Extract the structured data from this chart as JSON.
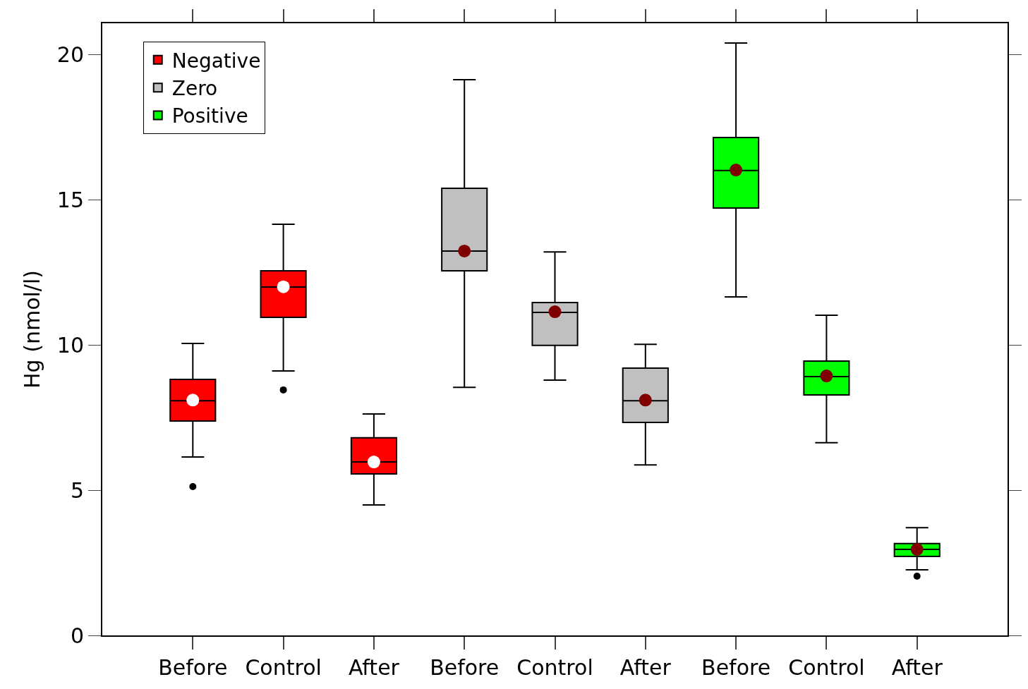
{
  "chart_data": {
    "type": "box",
    "ylabel": "Hg (nmol/l)",
    "categories": [
      "Before",
      "Control",
      "After",
      "Before",
      "Control",
      "After",
      "Before",
      "Control",
      "After"
    ],
    "ylim": [
      0,
      21.07
    ],
    "yticks": [
      0,
      5,
      10,
      15,
      20
    ],
    "legend": "top left",
    "series": [
      {
        "name": "Negative",
        "color": "#ff0000",
        "boxes": [
          {
            "low": 6.14,
            "q1": 7.38,
            "median": 8.08,
            "q3": 8.81,
            "high": 10.05,
            "mean": 8.1,
            "outliers": [
              5.12
            ]
          },
          {
            "low": 9.1,
            "q1": 10.95,
            "median": 11.99,
            "q3": 12.55,
            "high": 14.15,
            "mean": 12.0,
            "outliers": [
              8.45
            ]
          },
          {
            "low": 4.49,
            "q1": 5.56,
            "median": 5.97,
            "q3": 6.8,
            "high": 7.62,
            "mean": 5.97
          },
          null,
          null,
          null,
          null,
          null,
          null
        ]
      },
      {
        "name": "Zero",
        "color": "#c0c0c0",
        "boxes": [
          null,
          null,
          null,
          {
            "low": 8.54,
            "q1": 12.55,
            "median": 13.23,
            "q3": 15.39,
            "high": 19.13,
            "mean": 13.23
          },
          {
            "low": 8.79,
            "q1": 9.98,
            "median": 11.12,
            "q3": 11.46,
            "high": 13.2,
            "mean": 11.14
          },
          {
            "low": 5.87,
            "q1": 7.33,
            "median": 8.08,
            "q3": 9.2,
            "high": 10.02,
            "mean": 8.1
          },
          null,
          null,
          null
        ]
      },
      {
        "name": "Positive",
        "color": "#00ff00",
        "boxes": [
          null,
          null,
          null,
          null,
          null,
          null,
          {
            "low": 11.65,
            "q1": 14.71,
            "median": 16.0,
            "q3": 17.14,
            "high": 20.39,
            "mean": 16.02
          },
          {
            "low": 6.63,
            "q1": 8.28,
            "median": 8.91,
            "q3": 9.44,
            "high": 11.02,
            "mean": 8.93
          },
          {
            "low": 2.26,
            "q1": 2.72,
            "median": 2.96,
            "q3": 3.16,
            "high": 3.71,
            "mean": 2.96,
            "outliers": [
              2.04
            ]
          }
        ]
      }
    ]
  }
}
